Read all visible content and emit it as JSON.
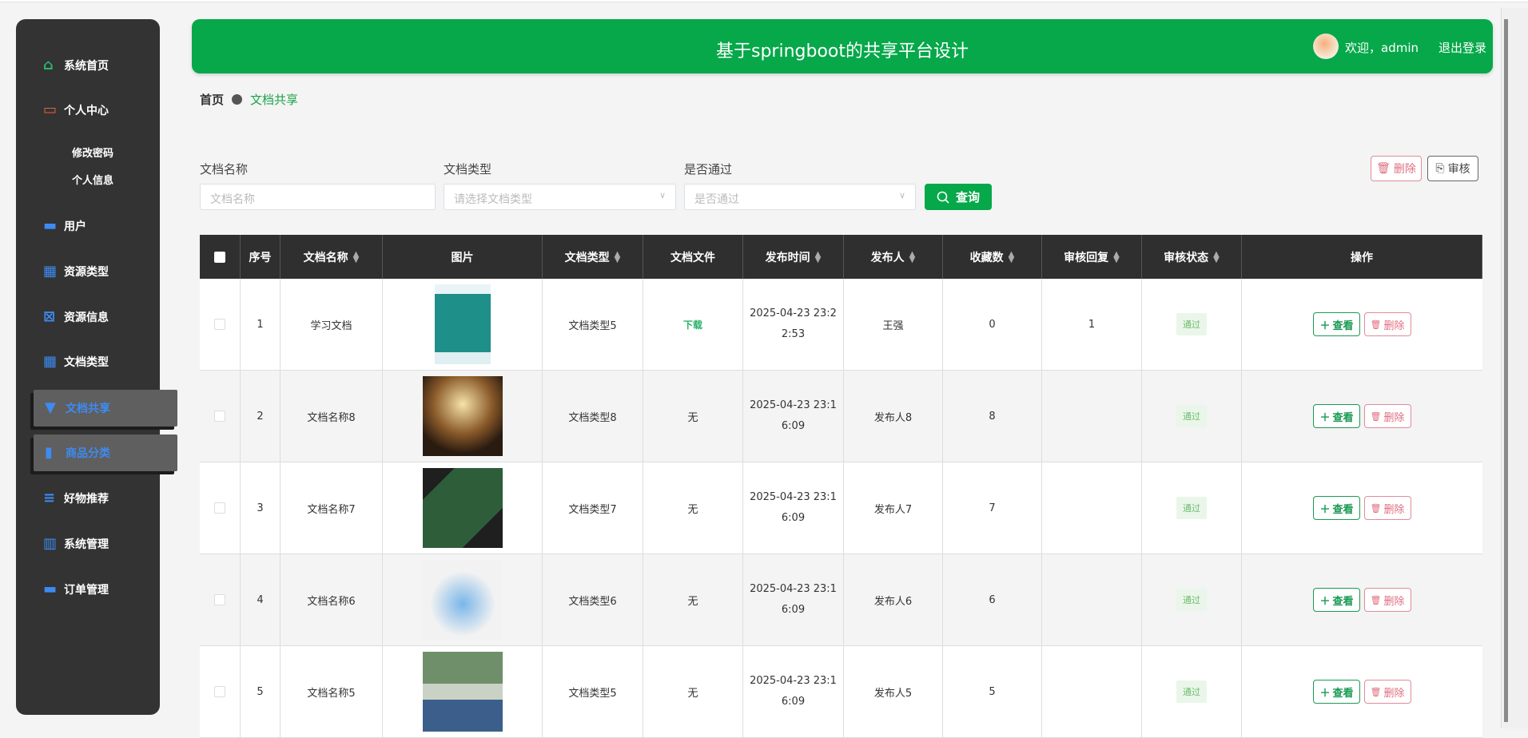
{
  "sidebar": {
    "items": [
      {
        "label": "系统首页",
        "icon": "home-icon",
        "color": "#2bb36a"
      },
      {
        "label": "个人中心",
        "icon": "wallet-icon",
        "color": "#e8613c"
      },
      {
        "label": "用户",
        "icon": "briefcase-icon",
        "color": "#3d8bf2"
      },
      {
        "label": "资源类型",
        "icon": "grid-icon",
        "color": "#3d8bf2"
      },
      {
        "label": "资源信息",
        "icon": "clipboard-x-icon",
        "color": "#3d8bf2"
      },
      {
        "label": "文档类型",
        "icon": "grid-icon",
        "color": "#3d8bf2"
      },
      {
        "label": "文档共享",
        "icon": "brush-icon",
        "color": "#3d8bf2"
      },
      {
        "label": "商品分类",
        "icon": "bar-chart-icon",
        "color": "#3d8bf2"
      },
      {
        "label": "好物推荐",
        "icon": "list-icon",
        "color": "#3d8bf2"
      },
      {
        "label": "系统管理",
        "icon": "books-icon",
        "color": "#3d8bf2"
      },
      {
        "label": "订单管理",
        "icon": "monitor-icon",
        "color": "#3d8bf2"
      }
    ],
    "sub_items": [
      "修改密码",
      "个人信息"
    ]
  },
  "header": {
    "title": "基于springboot的共享平台设计",
    "welcome": "欢迎，admin",
    "logout": "退出登录"
  },
  "breadcrumb": {
    "home": "首页",
    "current": "文档共享"
  },
  "search": {
    "name_label": "文档名称",
    "name_placeholder": "文档名称",
    "type_label": "文档类型",
    "type_placeholder": "请选择文档类型",
    "pass_label": "是否通过",
    "pass_placeholder": "是否通过",
    "query": "查询"
  },
  "toolbar": {
    "delete": "删除",
    "review": "审核"
  },
  "table": {
    "headers": [
      "序号",
      "文档名称",
      "图片",
      "文档类型",
      "文档文件",
      "发布时间",
      "发布人",
      "收藏数",
      "审核回复",
      "审核状态",
      "操作"
    ],
    "rows": [
      {
        "no": "1",
        "name": "学习文档",
        "type": "文档类型5",
        "file": "下载",
        "time": "2025-04-23 23:22:53",
        "publisher": "王强",
        "fav": "0",
        "reply": "1",
        "status": "通过"
      },
      {
        "no": "2",
        "name": "文档名称8",
        "type": "文档类型8",
        "file": "无",
        "time": "2025-04-23 23:16:09",
        "publisher": "发布人8",
        "fav": "8",
        "reply": "",
        "status": "通过"
      },
      {
        "no": "3",
        "name": "文档名称7",
        "type": "文档类型7",
        "file": "无",
        "time": "2025-04-23 23:16:09",
        "publisher": "发布人7",
        "fav": "7",
        "reply": "",
        "status": "通过"
      },
      {
        "no": "4",
        "name": "文档名称6",
        "type": "文档类型6",
        "file": "无",
        "time": "2025-04-23 23:16:09",
        "publisher": "发布人6",
        "fav": "6",
        "reply": "",
        "status": "通过"
      },
      {
        "no": "5",
        "name": "文档名称5",
        "type": "文档类型5",
        "file": "无",
        "time": "2025-04-23 23:16:09",
        "publisher": "发布人5",
        "fav": "5",
        "reply": "",
        "status": "通过"
      }
    ],
    "view_label": "查看",
    "delete_label": "删除"
  },
  "colors": {
    "primary": "#06a84a",
    "sidebar": "#333333",
    "danger": "#e06d7f"
  }
}
